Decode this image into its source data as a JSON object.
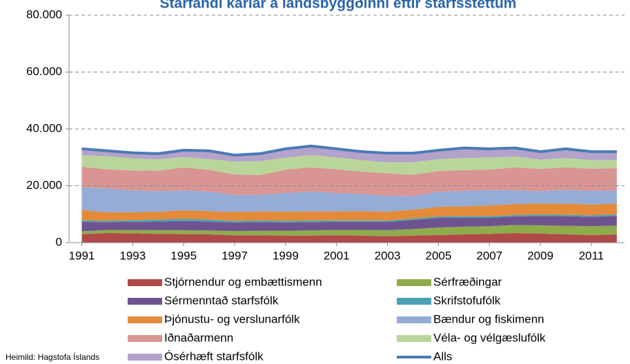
{
  "chart_data": {
    "type": "stacked-area",
    "title": "Starfandi karlar á landsbyggðinni eftir starfsstéttum",
    "source": "Heimild: Hagstofa Íslands",
    "x": [
      1991,
      1992,
      1993,
      1994,
      1995,
      1996,
      1997,
      1998,
      1999,
      2000,
      2001,
      2002,
      2003,
      2004,
      2005,
      2006,
      2007,
      2008,
      2009,
      2010,
      2011,
      2012
    ],
    "xlim": [
      1990.5,
      2012.3
    ],
    "xticks": [
      1991,
      1993,
      1995,
      1997,
      1999,
      2001,
      2003,
      2005,
      2007,
      2009,
      2011
    ],
    "ylim": [
      0,
      80000
    ],
    "yticks": [
      {
        "value": 0,
        "label": "0"
      },
      {
        "value": 20000,
        "label": "20.000"
      },
      {
        "value": 40000,
        "label": "40.000"
      },
      {
        "value": 60000,
        "label": "60.000"
      },
      {
        "value": 80000,
        "label": "80.000"
      }
    ],
    "grid": true,
    "series": [
      {
        "name": "Stjórnendur og embættismenn",
        "color": "#b04a48",
        "values": [
          3000,
          3400,
          3300,
          3100,
          3000,
          2900,
          2600,
          2600,
          2500,
          2500,
          2600,
          2500,
          2300,
          2500,
          2700,
          2900,
          3100,
          3400,
          3200,
          2900,
          2700,
          2900
        ]
      },
      {
        "name": "Sérfræðingar",
        "color": "#8fac4c",
        "values": [
          1000,
          1100,
          1200,
          1300,
          1400,
          1400,
          1500,
          1600,
          1700,
          1800,
          1900,
          2000,
          2100,
          2300,
          2600,
          2700,
          2700,
          2800,
          2900,
          3000,
          3100,
          3100
        ]
      },
      {
        "name": "Sérmenntað starfsfólk",
        "color": "#6f5390",
        "values": [
          3300,
          2700,
          2800,
          3000,
          3200,
          3100,
          3000,
          3000,
          2900,
          2900,
          2800,
          2800,
          2900,
          3200,
          3400,
          3200,
          3000,
          3000,
          3300,
          3400,
          3300,
          3400
        ]
      },
      {
        "name": "Skrifstofufólk",
        "color": "#4aa2b7",
        "values": [
          500,
          500,
          600,
          700,
          800,
          700,
          600,
          600,
          600,
          600,
          500,
          500,
          500,
          500,
          500,
          500,
          500,
          500,
          500,
          500,
          500,
          500
        ]
      },
      {
        "name": "Þjónustu- og verslunarfólk",
        "color": "#e38b3a",
        "values": [
          3700,
          3000,
          2800,
          2800,
          3000,
          3000,
          3100,
          3200,
          3200,
          3200,
          3200,
          3300,
          3100,
          3100,
          3400,
          3500,
          3800,
          3900,
          3900,
          3900,
          3800,
          3900
        ]
      },
      {
        "name": "Bændur og fiskimenn",
        "color": "#94acd6",
        "values": [
          8000,
          8300,
          7700,
          7200,
          7000,
          6800,
          6000,
          5800,
          6600,
          7000,
          6500,
          6000,
          5600,
          4800,
          5300,
          5400,
          5400,
          4800,
          4300,
          4900,
          4800,
          4600
        ]
      },
      {
        "name": "Iðnaðarmenn",
        "color": "#d99594",
        "values": [
          7200,
          6800,
          7000,
          7200,
          8100,
          7700,
          7200,
          7000,
          8200,
          8500,
          8300,
          7900,
          7900,
          7500,
          7300,
          7300,
          7200,
          8100,
          7800,
          7900,
          7800,
          7800
        ]
      },
      {
        "name": "Véla- og vélgæslufólk",
        "color": "#bad59a",
        "values": [
          4100,
          4600,
          4200,
          4000,
          3600,
          3800,
          4500,
          4900,
          4200,
          4300,
          4200,
          4000,
          3800,
          4300,
          4200,
          4300,
          4200,
          3800,
          3300,
          3300,
          3000,
          2800
        ]
      },
      {
        "name": "Ósérhæft starfsfólk",
        "color": "#b3a3cb",
        "values": [
          2200,
          1900,
          2000,
          2000,
          2400,
          2900,
          2300,
          2600,
          3100,
          3200,
          3000,
          3000,
          3300,
          3300,
          3100,
          3500,
          3100,
          3000,
          2800,
          3200,
          2900,
          2900
        ]
      }
    ],
    "total": {
      "name": "Alls",
      "color": "#4b7ab5",
      "values": [
        33000,
        32300,
        31600,
        31300,
        32500,
        32300,
        30800,
        31300,
        33000,
        34000,
        33000,
        32000,
        31500,
        31500,
        32500,
        33300,
        33000,
        33300,
        32000,
        33000,
        32000,
        32000
      ]
    }
  }
}
